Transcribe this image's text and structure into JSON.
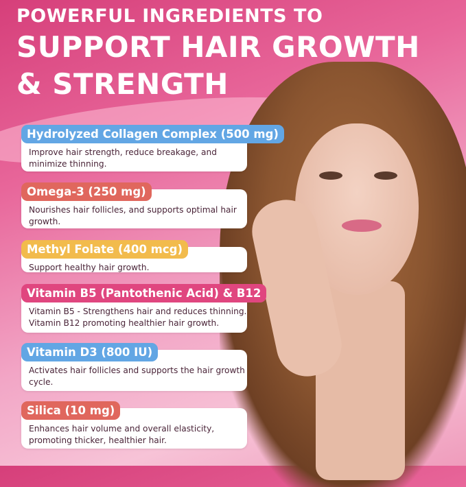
{
  "headline": {
    "line1": "POWERFUL INGREDIENTS TO",
    "line2": "SUPPORT HAIR GROWTH",
    "line3": "& STRENGTH"
  },
  "ingredients": [
    {
      "name": "Hydrolyzed Collagen Complex (500 mg)",
      "description": "Improve hair strength, reduce breakage, and minimize thinning.",
      "color": "#62a6e4"
    },
    {
      "name": "Omega-3 (250 mg)",
      "description": "Nourishes hair follicles, and supports optimal hair growth.",
      "color": "#e0675d"
    },
    {
      "name": "Methyl Folate (400 mcg)",
      "description": "Support healthy hair growth.",
      "color": "#f2bb4c"
    },
    {
      "name": "Vitamin B5 (Pantothenic Acid) & B12",
      "description": "Vitamin B5 - Strengthens hair and reduces thinning. Vitamin B12 promoting healthier hair growth.",
      "color": "#e0467f"
    },
    {
      "name": "Vitamin D3 (800 IU)",
      "description": "Activates hair follicles and supports the hair growth cycle.",
      "color": "#62a6e4"
    },
    {
      "name": "Silica (10 mg)",
      "description": "Enhances hair volume and overall elasticity, promoting thicker, healthier hair.",
      "color": "#e0675d"
    }
  ]
}
